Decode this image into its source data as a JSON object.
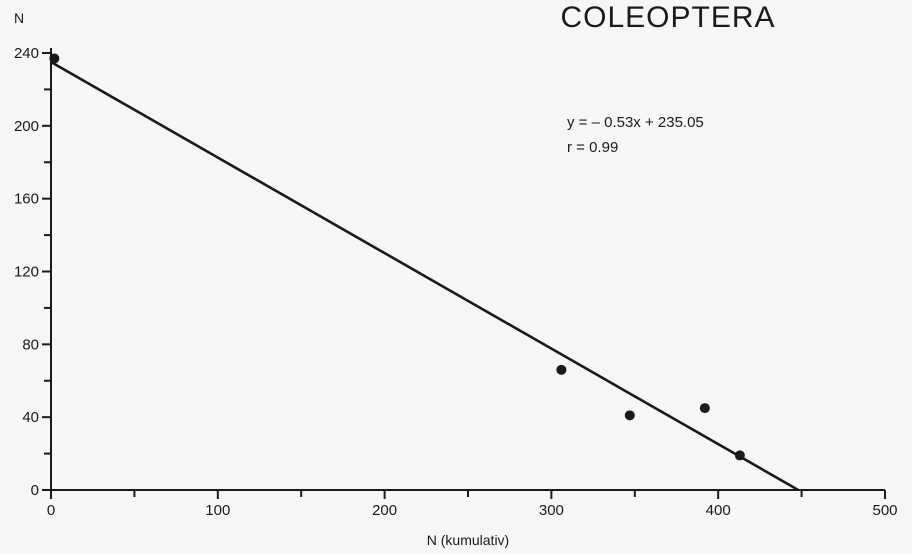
{
  "chart_data": {
    "type": "scatter",
    "title": "COLEOPTERA",
    "xlabel": "N (kumulativ)",
    "ylabel": "N",
    "xlim": [
      0,
      500
    ],
    "ylim": [
      0,
      240
    ],
    "x_ticks_major": [
      0,
      100,
      200,
      300,
      400,
      500
    ],
    "x_ticks_minor": [
      50,
      150,
      250,
      350,
      450
    ],
    "y_ticks_major": [
      0,
      40,
      80,
      120,
      160,
      200,
      240
    ],
    "y_ticks_minor": [
      20,
      60,
      100,
      140,
      180,
      220
    ],
    "grid": false,
    "points": [
      {
        "x": 2,
        "y": 237
      },
      {
        "x": 306,
        "y": 66
      },
      {
        "x": 347,
        "y": 41
      },
      {
        "x": 392,
        "y": 45
      },
      {
        "x": 413,
        "y": 19
      }
    ],
    "regression": {
      "slope": -0.53,
      "intercept": 235.05,
      "x_start": 0,
      "x_end": 448
    },
    "annotations": {
      "equation": "y = – 0.53x + 235.05",
      "r": "r = 0.99"
    },
    "colors": {
      "ink": "#1a1a1a",
      "background": "#f6f6f4"
    }
  }
}
